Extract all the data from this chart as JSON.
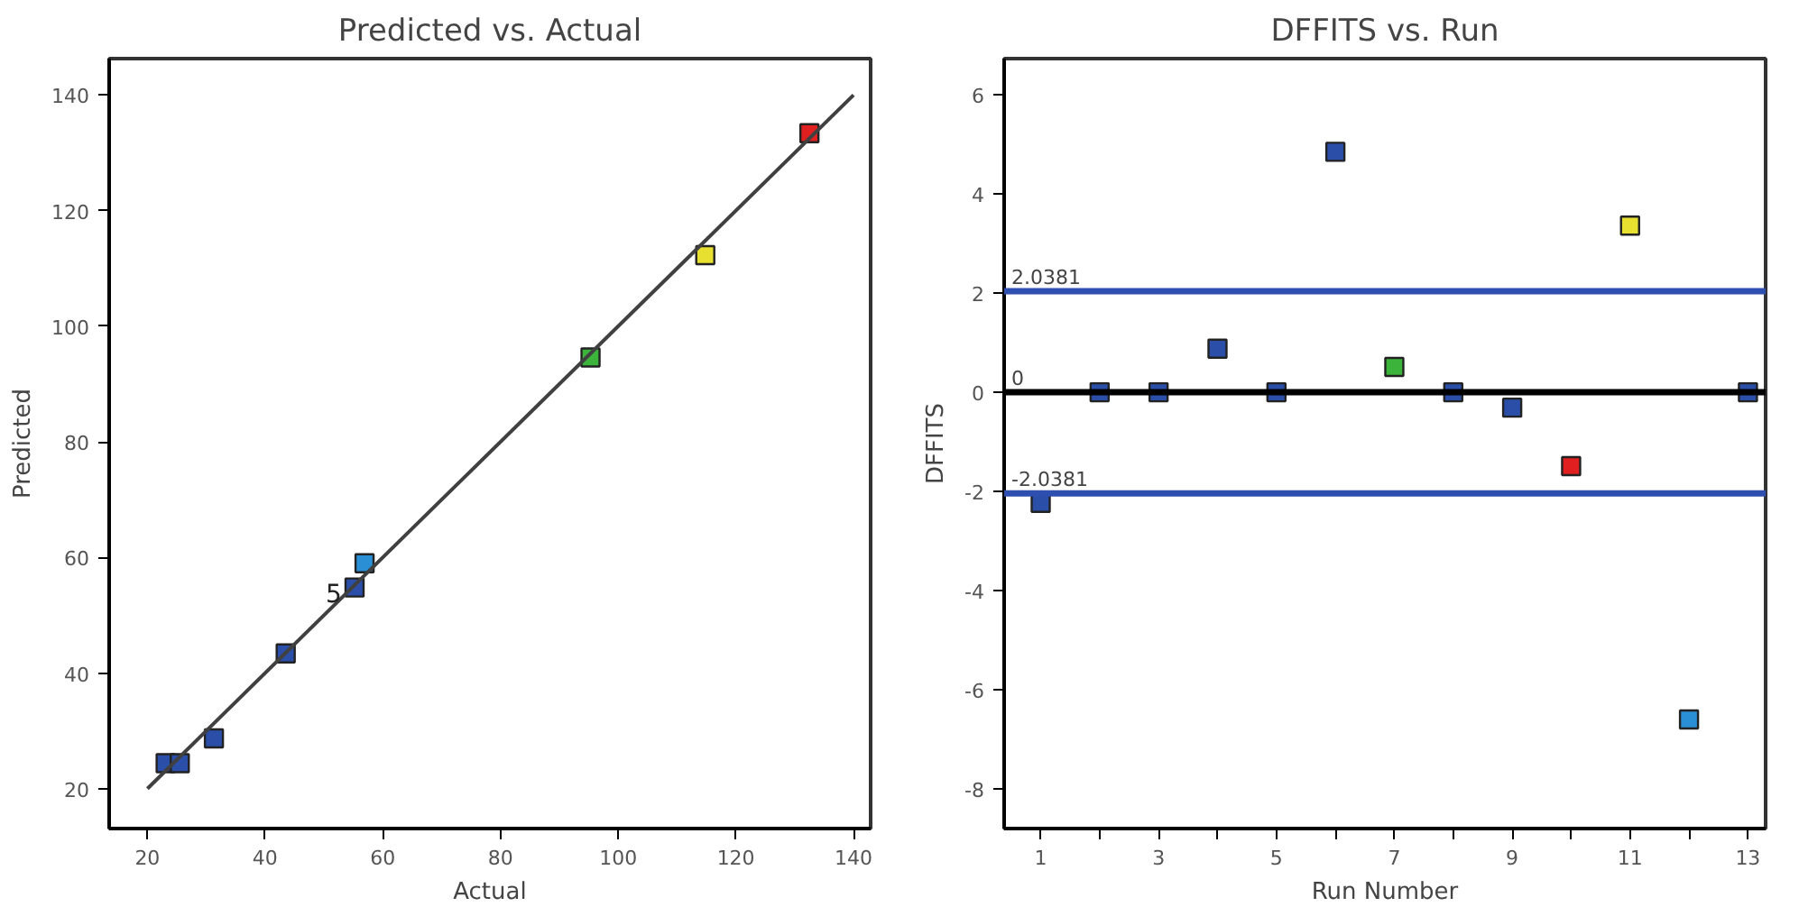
{
  "chart_data": [
    {
      "type": "scatter",
      "title": "Predicted vs. Actual",
      "xlabel": "Actual",
      "ylabel": "Predicted",
      "xlim": [
        13.5,
        142.9
      ],
      "ylim": [
        13.1,
        146.3
      ],
      "xticks": [
        20,
        40,
        60,
        80,
        100,
        120,
        140
      ],
      "yticks": [
        20,
        40,
        60,
        80,
        100,
        120,
        140
      ],
      "grid": false,
      "series": [
        {
          "marker": "square",
          "x": [
            23.1,
            25.5,
            31.3,
            43.5,
            55.2,
            56.9,
            95.3,
            114.8,
            132.5
          ],
          "values": [
            24.4,
            24.4,
            28.7,
            43.4,
            54.8,
            59.0,
            94.6,
            112.3,
            133.4
          ],
          "colors": [
            "#2b4fa8",
            "#2b4fa8",
            "#2b4fa8",
            "#2b4fa8",
            "#2b4fa8",
            "#2a8fd4",
            "#3cb43c",
            "#e8e030",
            "#e02020"
          ]
        },
        {
          "type": "line",
          "x": [
            20,
            140
          ],
          "values": [
            20,
            140
          ],
          "color": "#404040",
          "line_style": "solid",
          "marker": "none"
        }
      ],
      "annotations": [
        {
          "text": "5",
          "x": 55.2,
          "y": 54.8
        }
      ]
    },
    {
      "type": "scatter",
      "title": "DFFITS vs. Run",
      "xlabel": "Run Number",
      "ylabel": "DFFITS",
      "xlim": [
        0.38,
        13.3
      ],
      "ylim": [
        -8.8,
        6.73
      ],
      "xticks": [
        1,
        {
          "value": 2,
          "label": null
        },
        3,
        {
          "value": 4,
          "label": null
        },
        5,
        {
          "value": 6,
          "label": null
        },
        7,
        {
          "value": 8,
          "label": null
        },
        9,
        {
          "value": 10,
          "label": null
        },
        11,
        {
          "value": 12,
          "label": null
        },
        13
      ],
      "yticks": [
        -8,
        -6,
        -4,
        -2,
        0,
        2,
        4,
        6
      ],
      "grid": false,
      "series": [
        {
          "marker": "square",
          "x": [
            1,
            2,
            3,
            4,
            5,
            6,
            7,
            8,
            9,
            10,
            11,
            12,
            13
          ],
          "values": [
            -2.23,
            0,
            0,
            0.88,
            0,
            4.85,
            0.51,
            0,
            -0.31,
            -1.49,
            3.36,
            -6.6,
            0
          ],
          "colors": [
            "#2b4fa8",
            "#2b4fa8",
            "#2b4fa8",
            "#2b4fa8",
            "#2b4fa8",
            "#2b4fa8",
            "#3cb43c",
            "#2b4fa8",
            "#2b4fa8",
            "#e02020",
            "#e8e030",
            "#2a8fd4",
            "#2b4fa8"
          ]
        }
      ],
      "ref_lines": [
        {
          "axis": "y",
          "value": 2.0381,
          "label": "2.0381",
          "color": "#2e4fb0"
        },
        {
          "axis": "y",
          "value": 0,
          "label": "0",
          "color": "#000000"
        },
        {
          "axis": "y",
          "value": -2.0381,
          "label": "-2.0381",
          "color": "#2e4fb0"
        }
      ]
    }
  ]
}
